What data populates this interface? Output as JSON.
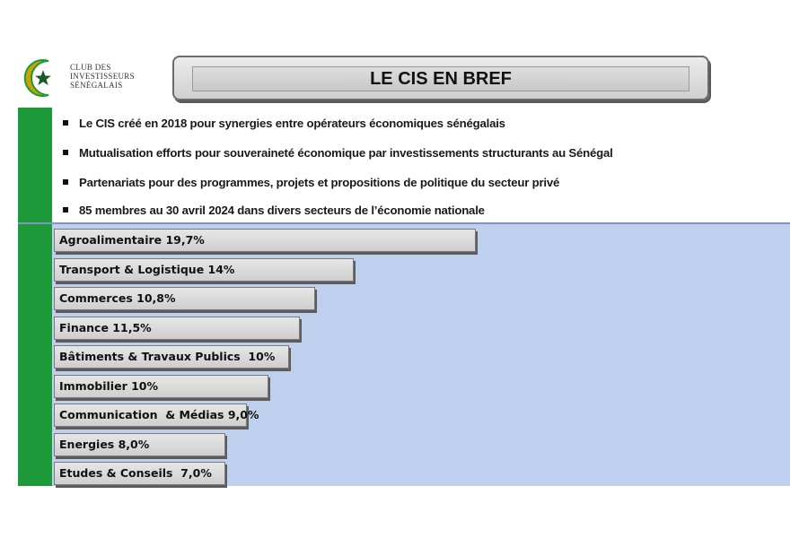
{
  "logo": {
    "lines": [
      "CLUB DES",
      "INVESTISSEURS",
      "SÉNÉGALAIS"
    ],
    "accent_color": "#1e9a3a",
    "star_color": "#1a5a2a",
    "crescent_color": "#c9a400",
    "icon": "crescent-star-icon"
  },
  "header": {
    "title": "LE CIS EN BREF"
  },
  "bullets": [
    "Le CIS créé en 2018 pour synergies entre opérateurs économiques  sénégalais",
    "Mutualisation efforts pour souveraineté économique par investissements structurants au Sénégal",
    "Partenariats pour des programmes, projets et propositions de politique du secteur privé",
    "85 membres au 30 avril 2024 dans divers secteurs de l’économie nationale"
  ],
  "chart_data": {
    "type": "bar",
    "orientation": "horizontal",
    "categories": [
      "Agroalimentaire",
      "Transport & Logistique",
      "Commerces",
      "Finance",
      "Bâtiments & Travaux Publics",
      "Immobilier",
      "Communication  & Médias",
      "Energies",
      "Etudes & Conseils"
    ],
    "values": [
      19.7,
      14,
      10.8,
      11.5,
      10,
      10,
      9.0,
      8.0,
      7.0
    ],
    "labels": [
      "Agroalimentaire 19,7%",
      "Transport & Logistique 14%",
      "Commerces 10,8%",
      "Finance 11,5%",
      "Bâtiments & Travaux Publics  10%",
      "Immobilier 10%",
      "Communication  & Médias 9,0%",
      "Energies 8,0%",
      "Etudes & Conseils  7,0%"
    ],
    "unit": "%",
    "colors": {
      "bar": "#d9d9d9",
      "background": "#bfcfee",
      "band": "#1e9a3a"
    }
  }
}
